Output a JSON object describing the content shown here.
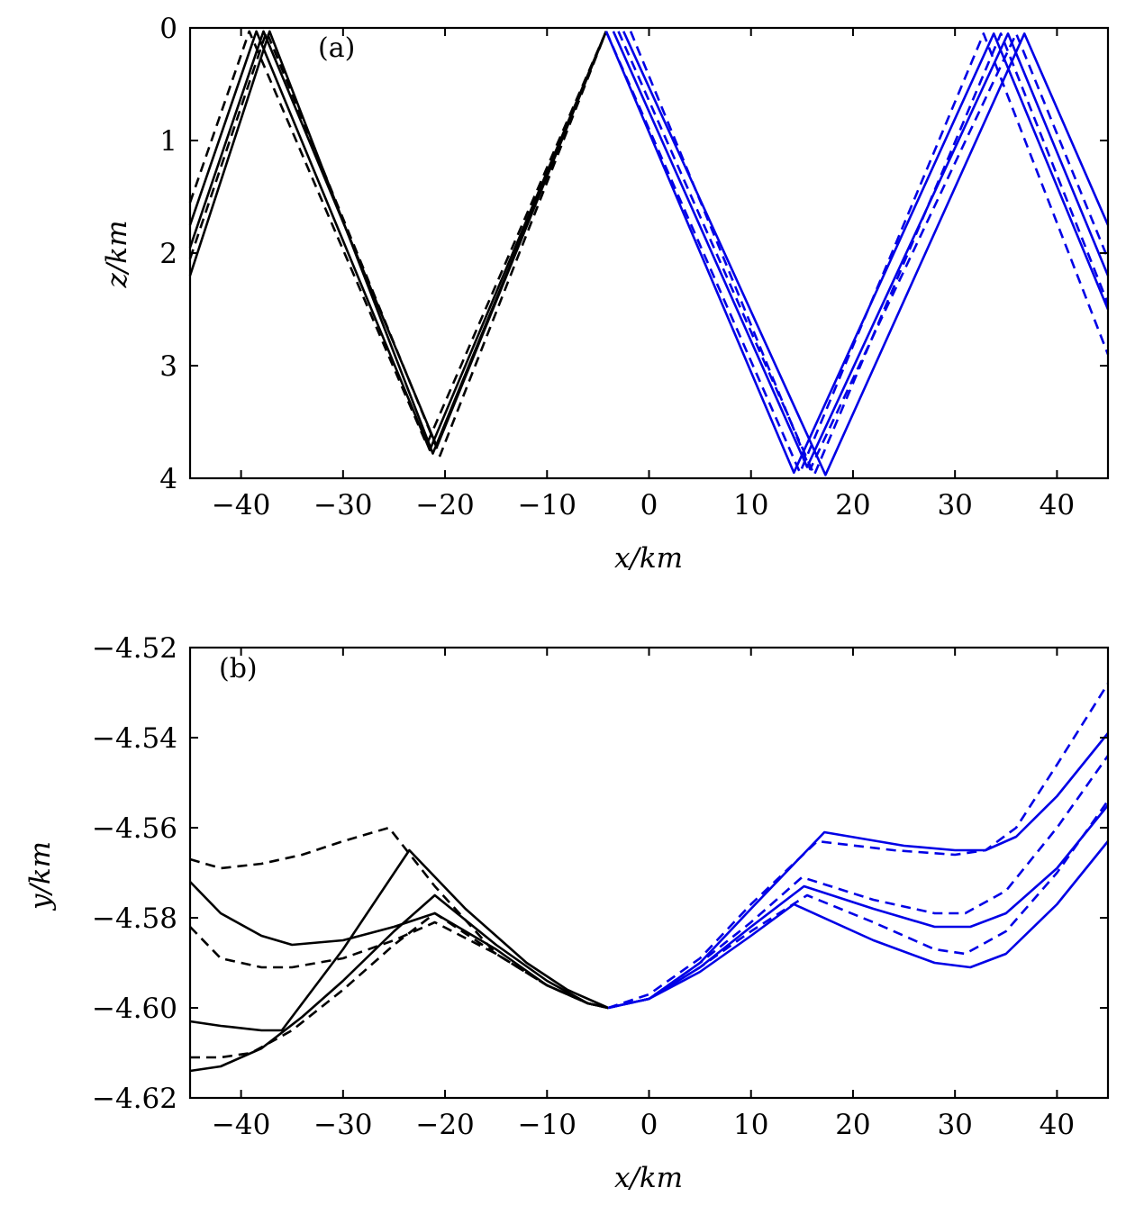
{
  "colors": {
    "black": "#000000",
    "blue": "#0000e6"
  },
  "chart_data": [
    {
      "type": "line",
      "panel_label": "(a)",
      "xlabel": "x/km",
      "ylabel": "z/km",
      "xlim": [
        -45,
        45
      ],
      "ylim": [
        0,
        4
      ],
      "y_reversed": true,
      "xticks": [
        -40,
        -30,
        -20,
        -10,
        0,
        10,
        20,
        30,
        40
      ],
      "xtick_labels": [
        "−40",
        "−30",
        "−20",
        "−10",
        "0",
        "10",
        "20",
        "30",
        "40"
      ],
      "yticks": [
        0,
        1,
        2,
        3,
        4
      ],
      "ytick_labels": [
        "0",
        "1",
        "2",
        "3",
        "4"
      ],
      "grid": false,
      "series": [
        {
          "color": "black",
          "style": "solid",
          "x": [
            -45,
            -38.5,
            -21.5,
            -4.2
          ],
          "y": [
            1.75,
            0.03,
            3.75,
            0.03
          ]
        },
        {
          "color": "black",
          "style": "solid",
          "x": [
            -45,
            -37.2,
            -21.2,
            -4.2
          ],
          "y": [
            2.2,
            0.03,
            3.78,
            0.03
          ]
        },
        {
          "color": "black",
          "style": "solid",
          "x": [
            -45,
            -37.8,
            -20.8,
            -4.2
          ],
          "y": [
            1.95,
            0.03,
            3.72,
            0.03
          ]
        },
        {
          "color": "black",
          "style": "dashed",
          "x": [
            -45,
            -39.2,
            -21.8,
            -4.2
          ],
          "y": [
            1.55,
            0.03,
            3.7,
            0.03
          ]
        },
        {
          "color": "black",
          "style": "dashed",
          "x": [
            -45,
            -37.5,
            -20.5,
            -4.2
          ],
          "y": [
            2.05,
            0.03,
            3.8,
            0.03
          ]
        },
        {
          "color": "blue",
          "style": "solid",
          "x": [
            -4.2,
            14.2,
            33.8,
            45
          ],
          "y": [
            0.03,
            3.95,
            0.05,
            2.5
          ]
        },
        {
          "color": "blue",
          "style": "solid",
          "x": [
            -3.5,
            15.5,
            35.2,
            45
          ],
          "y": [
            0.03,
            3.9,
            0.05,
            2.2
          ]
        },
        {
          "color": "blue",
          "style": "solid",
          "x": [
            -2.5,
            17.3,
            36.8,
            45
          ],
          "y": [
            0.03,
            3.97,
            0.05,
            1.75
          ]
        },
        {
          "color": "blue",
          "style": "dashed",
          "x": [
            -4.2,
            14.8,
            32.8,
            45
          ],
          "y": [
            0.03,
            3.95,
            0.05,
            2.9
          ]
        },
        {
          "color": "blue",
          "style": "dashed",
          "x": [
            -3.0,
            16.2,
            34.5,
            45
          ],
          "y": [
            0.03,
            3.97,
            0.05,
            2.45
          ]
        },
        {
          "color": "blue",
          "style": "dashed",
          "x": [
            -1.8,
            15.8,
            36.0,
            45
          ],
          "y": [
            0.03,
            3.92,
            0.05,
            2.05
          ]
        }
      ]
    },
    {
      "type": "line",
      "panel_label": "(b)",
      "xlabel": "x/km",
      "ylabel": "y/km",
      "xlim": [
        -45,
        45
      ],
      "ylim": [
        -4.62,
        -4.52
      ],
      "y_reversed": false,
      "xticks": [
        -40,
        -30,
        -20,
        -10,
        0,
        10,
        20,
        30,
        40
      ],
      "xtick_labels": [
        "−40",
        "−30",
        "−20",
        "−10",
        "0",
        "10",
        "20",
        "30",
        "40"
      ],
      "yticks": [
        -4.62,
        -4.6,
        -4.58,
        -4.56,
        -4.54,
        -4.52
      ],
      "ytick_labels": [
        "−4.62",
        "−4.60",
        "−4.58",
        "−4.56",
        "−4.54",
        "−4.52"
      ],
      "grid": false,
      "series": [
        {
          "color": "black",
          "style": "solid",
          "x": [
            -45,
            -42,
            -38,
            -35,
            -30,
            -25,
            -21,
            -15,
            -10,
            -6,
            -4
          ],
          "y": [
            -4.572,
            -4.579,
            -4.584,
            -4.586,
            -4.585,
            -4.582,
            -4.579,
            -4.587,
            -4.595,
            -4.599,
            -4.6
          ]
        },
        {
          "color": "black",
          "style": "solid",
          "x": [
            -45,
            -42,
            -38,
            -36,
            -30,
            -23.5,
            -18,
            -12,
            -8,
            -5,
            -4
          ],
          "y": [
            -4.603,
            -4.604,
            -4.605,
            -4.605,
            -4.587,
            -4.565,
            -4.578,
            -4.59,
            -4.596,
            -4.599,
            -4.6
          ]
        },
        {
          "color": "black",
          "style": "solid",
          "x": [
            -45,
            -42,
            -38,
            -34,
            -30,
            -25,
            -21,
            -15,
            -10,
            -6,
            -4
          ],
          "y": [
            -4.614,
            -4.613,
            -4.609,
            -4.602,
            -4.594,
            -4.583,
            -4.575,
            -4.586,
            -4.594,
            -4.599,
            -4.6
          ]
        },
        {
          "color": "black",
          "style": "dashed",
          "x": [
            -45,
            -42,
            -38,
            -34,
            -30,
            -25.5,
            -21,
            -15,
            -10,
            -6,
            -4
          ],
          "y": [
            -4.567,
            -4.569,
            -4.568,
            -4.566,
            -4.563,
            -4.56,
            -4.573,
            -4.588,
            -4.595,
            -4.599,
            -4.6
          ]
        },
        {
          "color": "black",
          "style": "dashed",
          "x": [
            -45,
            -42,
            -38,
            -35,
            -30,
            -25,
            -21,
            -15,
            -10,
            -6,
            -4
          ],
          "y": [
            -4.582,
            -4.589,
            -4.591,
            -4.591,
            -4.589,
            -4.585,
            -4.581,
            -4.588,
            -4.595,
            -4.599,
            -4.6
          ]
        },
        {
          "color": "black",
          "style": "dashed",
          "x": [
            -45,
            -42,
            -39,
            -35,
            -30,
            -25,
            -21,
            -15,
            -10,
            -6,
            -4
          ],
          "y": [
            -4.611,
            -4.611,
            -4.61,
            -4.605,
            -4.596,
            -4.586,
            -4.579,
            -4.588,
            -4.595,
            -4.599,
            -4.6
          ]
        },
        {
          "color": "blue",
          "style": "solid",
          "x": [
            -4,
            0,
            5,
            10,
            17.2,
            25,
            30,
            33,
            36,
            40,
            45
          ],
          "y": [
            -4.6,
            -4.598,
            -4.59,
            -4.578,
            -4.561,
            -4.564,
            -4.565,
            -4.565,
            -4.562,
            -4.553,
            -4.539
          ]
        },
        {
          "color": "blue",
          "style": "solid",
          "x": [
            -4,
            0,
            5,
            10,
            15.2,
            22,
            28,
            31.5,
            35,
            40,
            45
          ],
          "y": [
            -4.6,
            -4.598,
            -4.591,
            -4.582,
            -4.573,
            -4.578,
            -4.582,
            -4.582,
            -4.579,
            -4.569,
            -4.555
          ]
        },
        {
          "color": "blue",
          "style": "solid",
          "x": [
            -4,
            0,
            5,
            10,
            14.2,
            22,
            28,
            31.5,
            35,
            40,
            45
          ],
          "y": [
            -4.6,
            -4.598,
            -4.592,
            -4.584,
            -4.577,
            -4.585,
            -4.59,
            -4.591,
            -4.588,
            -4.577,
            -4.563
          ]
        },
        {
          "color": "blue",
          "style": "dashed",
          "x": [
            -4,
            0,
            5,
            10,
            16.5,
            24,
            30,
            33,
            36,
            40,
            45
          ],
          "y": [
            -4.6,
            -4.597,
            -4.589,
            -4.577,
            -4.563,
            -4.565,
            -4.566,
            -4.565,
            -4.56,
            -4.546,
            -4.528
          ]
        },
        {
          "color": "blue",
          "style": "dashed",
          "x": [
            -4,
            0,
            5,
            10,
            15,
            22,
            28,
            31,
            35,
            40,
            45
          ],
          "y": [
            -4.6,
            -4.598,
            -4.59,
            -4.581,
            -4.571,
            -4.576,
            -4.579,
            -4.579,
            -4.574,
            -4.56,
            -4.544
          ]
        },
        {
          "color": "blue",
          "style": "dashed",
          "x": [
            -4,
            0,
            5,
            10,
            15.5,
            22,
            28,
            31,
            35,
            40,
            45
          ],
          "y": [
            -4.6,
            -4.598,
            -4.591,
            -4.583,
            -4.575,
            -4.581,
            -4.587,
            -4.588,
            -4.583,
            -4.57,
            -4.554
          ]
        }
      ]
    }
  ]
}
